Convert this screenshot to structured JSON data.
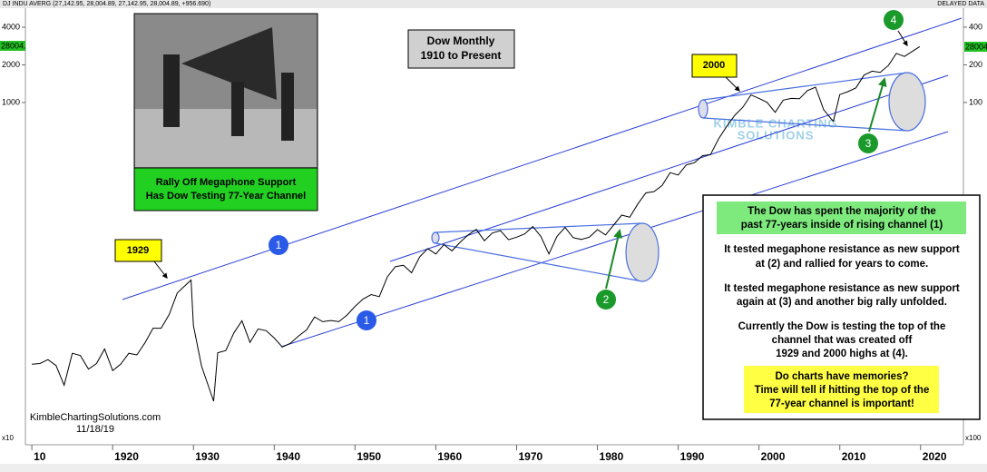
{
  "chart_data": {
    "type": "line",
    "title": "Dow Monthly",
    "subtitle": "1910 to Present",
    "header": "DJ INDU AVERG (27,142.95, 28,004.89, 27,142.95, 28,004.89, +956.690)",
    "data_status": "DELAYED DATA",
    "last_label_left": "28004.",
    "last_label_right": "28004",
    "y_multiplier_left": "x10",
    "y_multiplier_right": "x100",
    "log_y": true,
    "grid": false,
    "x": [
      1910,
      1911,
      1912,
      1913,
      1914,
      1915,
      1916,
      1917,
      1918,
      1919,
      1920,
      1921,
      1922,
      1923,
      1924,
      1925,
      1926,
      1927,
      1928,
      1929.7,
      1930,
      1931,
      1932.5,
      1933,
      1934,
      1935,
      1936,
      1937,
      1938,
      1939,
      1940,
      1941,
      1942,
      1943,
      1944,
      1945,
      1946,
      1947,
      1948,
      1949,
      1950,
      1951,
      1952,
      1953,
      1954,
      1955,
      1956,
      1957,
      1958,
      1959,
      1960,
      1961,
      1962,
      1963,
      1964,
      1965,
      1966,
      1967,
      1968,
      1969,
      1970,
      1971,
      1972,
      1973,
      1974,
      1975,
      1976,
      1977,
      1978,
      1979,
      1980,
      1981,
      1982,
      1983,
      1984,
      1985,
      1986,
      1987,
      1988,
      1989,
      1990,
      1991,
      1992,
      1993,
      1994,
      1995,
      1996,
      1997,
      1998,
      1999,
      2000,
      2001,
      2002,
      2003,
      2004,
      2005,
      2006,
      2007,
      2008,
      2009.2,
      2010,
      2011,
      2012,
      2013,
      2014,
      2015,
      2016,
      2017,
      2018,
      2019.9
    ],
    "series": [
      {
        "color": "#000000",
        "values": [
          81,
          82,
          88,
          79,
          55,
          99,
          95,
          74,
          82,
          107,
          72,
          81,
          99,
          96,
          120,
          157,
          157,
          202,
          300,
          381,
          165,
          78,
          41,
          100,
          104,
          144,
          180,
          121,
          155,
          150,
          131,
          111,
          119,
          136,
          152,
          193,
          177,
          181,
          177,
          200,
          235,
          269,
          292,
          281,
          404,
          488,
          500,
          436,
          584,
          679,
          616,
          731,
          652,
          763,
          874,
          969,
          786,
          905,
          944,
          800,
          839,
          890,
          1020,
          851,
          616,
          852,
          1005,
          831,
          805,
          839,
          964,
          875,
          1047,
          1259,
          1212,
          1547,
          1896,
          1939,
          2169,
          2753,
          2634,
          3169,
          3301,
          3754,
          3834,
          5117,
          6448,
          7908,
          9181,
          11497,
          10787,
          10022,
          8342,
          10454,
          10783,
          10718,
          12463,
          13265,
          8776,
          7062,
          11578,
          12218,
          13104,
          16577,
          17823,
          17425,
          19763,
          24719,
          23327,
          28004
        ]
      }
    ],
    "xlim": [
      1909.2,
      2025.3
    ],
    "xticks": [
      {
        "value": 1910,
        "label": "10"
      },
      1920,
      1930,
      1940,
      1950,
      1960,
      1970,
      1980,
      1990,
      2000,
      2010,
      2020
    ],
    "ylim": [
      19,
      54000
    ],
    "yticks": [
      {
        "value": 40000,
        "label": "4000"
      },
      {
        "value": 20000,
        "label": "2000"
      },
      {
        "value": 10000,
        "label": "1000"
      }
    ],
    "y2lim": [
      19,
      54000
    ],
    "y2ticks": [
      {
        "value": 40000,
        "label": "400"
      },
      {
        "value": 20000,
        "label": "200"
      },
      {
        "value": 10000,
        "label": "100"
      }
    ],
    "annotations": {
      "callout_1929": "1929",
      "callout_2000": "2000",
      "markers": [
        "1",
        "1",
        "2",
        "3",
        "4"
      ],
      "photo_caption": [
        "Rally Off Megaphone Support",
        "Has Dow Testing 77-Year Channel"
      ],
      "note_intro": [
        "The Dow has spent the majority of the",
        "past 77-years inside of rising channel (1)"
      ],
      "note_body": [
        "It tested megaphone resistance as new support",
        "at (2) and rallied for years to come.",
        "It tested megaphone resistance as new support",
        "again at (3) and another big rally unfolded.",
        "Currently the Dow is testing the top of the",
        "channel that was created off",
        "1929 and 2000 highs at (4)."
      ],
      "note_question": [
        "Do charts have memories?",
        "Time will tell if hitting the top of the",
        "77-year channel is important!"
      ],
      "watermark": [
        "KIMBLE CHARTING",
        "SOLUTIONS"
      ],
      "source": "KimbleChartingSolutions.com",
      "date": "11/18/19"
    }
  }
}
